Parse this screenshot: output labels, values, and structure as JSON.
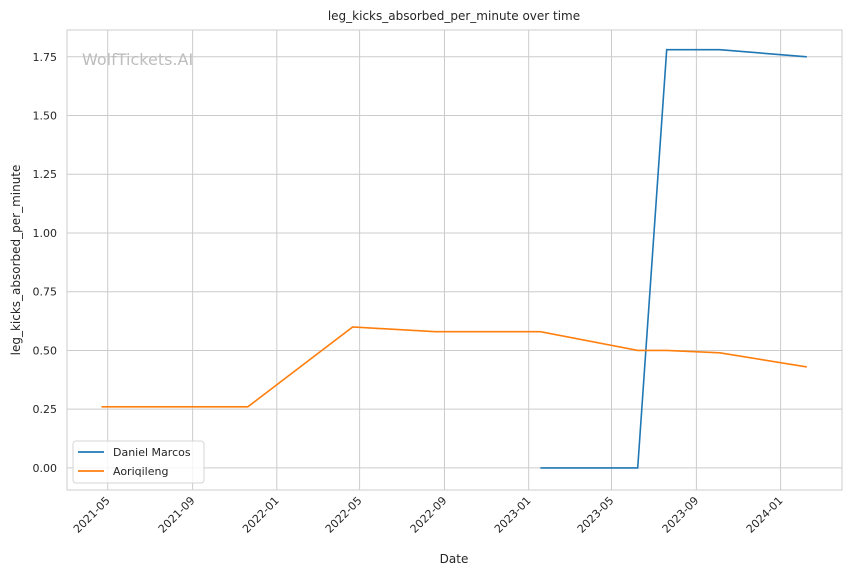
{
  "chart_data": {
    "type": "line",
    "title": "leg_kicks_absorbed_per_minute over time",
    "xlabel": "Date",
    "ylabel": "leg_kicks_absorbed_per_minute",
    "watermark": "WolfTickets.AI",
    "xlim": [
      "2021-03-03",
      "2024-03-30"
    ],
    "ylim": [
      -0.094,
      1.864
    ],
    "x_ticks": [
      "2021-05",
      "2021-09",
      "2022-01",
      "2022-05",
      "2022-09",
      "2023-01",
      "2023-05",
      "2023-09",
      "2024-01"
    ],
    "y_ticks": [
      0.0,
      0.25,
      0.5,
      0.75,
      1.0,
      1.25,
      1.5,
      1.75
    ],
    "y_tick_labels": [
      "0.00",
      "0.25",
      "0.50",
      "0.75",
      "1.00",
      "1.25",
      "1.50",
      "1.75"
    ],
    "grid": true,
    "legend_position": "lower-left",
    "series": [
      {
        "name": "Daniel Marcos",
        "color": "#1f77b4",
        "x": [
          "2023-01-18",
          "2023-06-08",
          "2023-07-20",
          "2023-10-05",
          "2024-02-08"
        ],
        "y": [
          0.0,
          0.0,
          1.78,
          1.78,
          1.75
        ]
      },
      {
        "name": "Aoriqileng",
        "color": "#ff7f0e",
        "x": [
          "2021-04-22",
          "2021-11-20",
          "2022-04-21",
          "2022-08-19",
          "2023-01-18",
          "2023-06-08",
          "2023-07-20",
          "2023-10-05",
          "2024-02-08"
        ],
        "y": [
          0.26,
          0.26,
          0.6,
          0.58,
          0.58,
          0.5,
          0.5,
          0.49,
          0.43
        ]
      }
    ]
  }
}
